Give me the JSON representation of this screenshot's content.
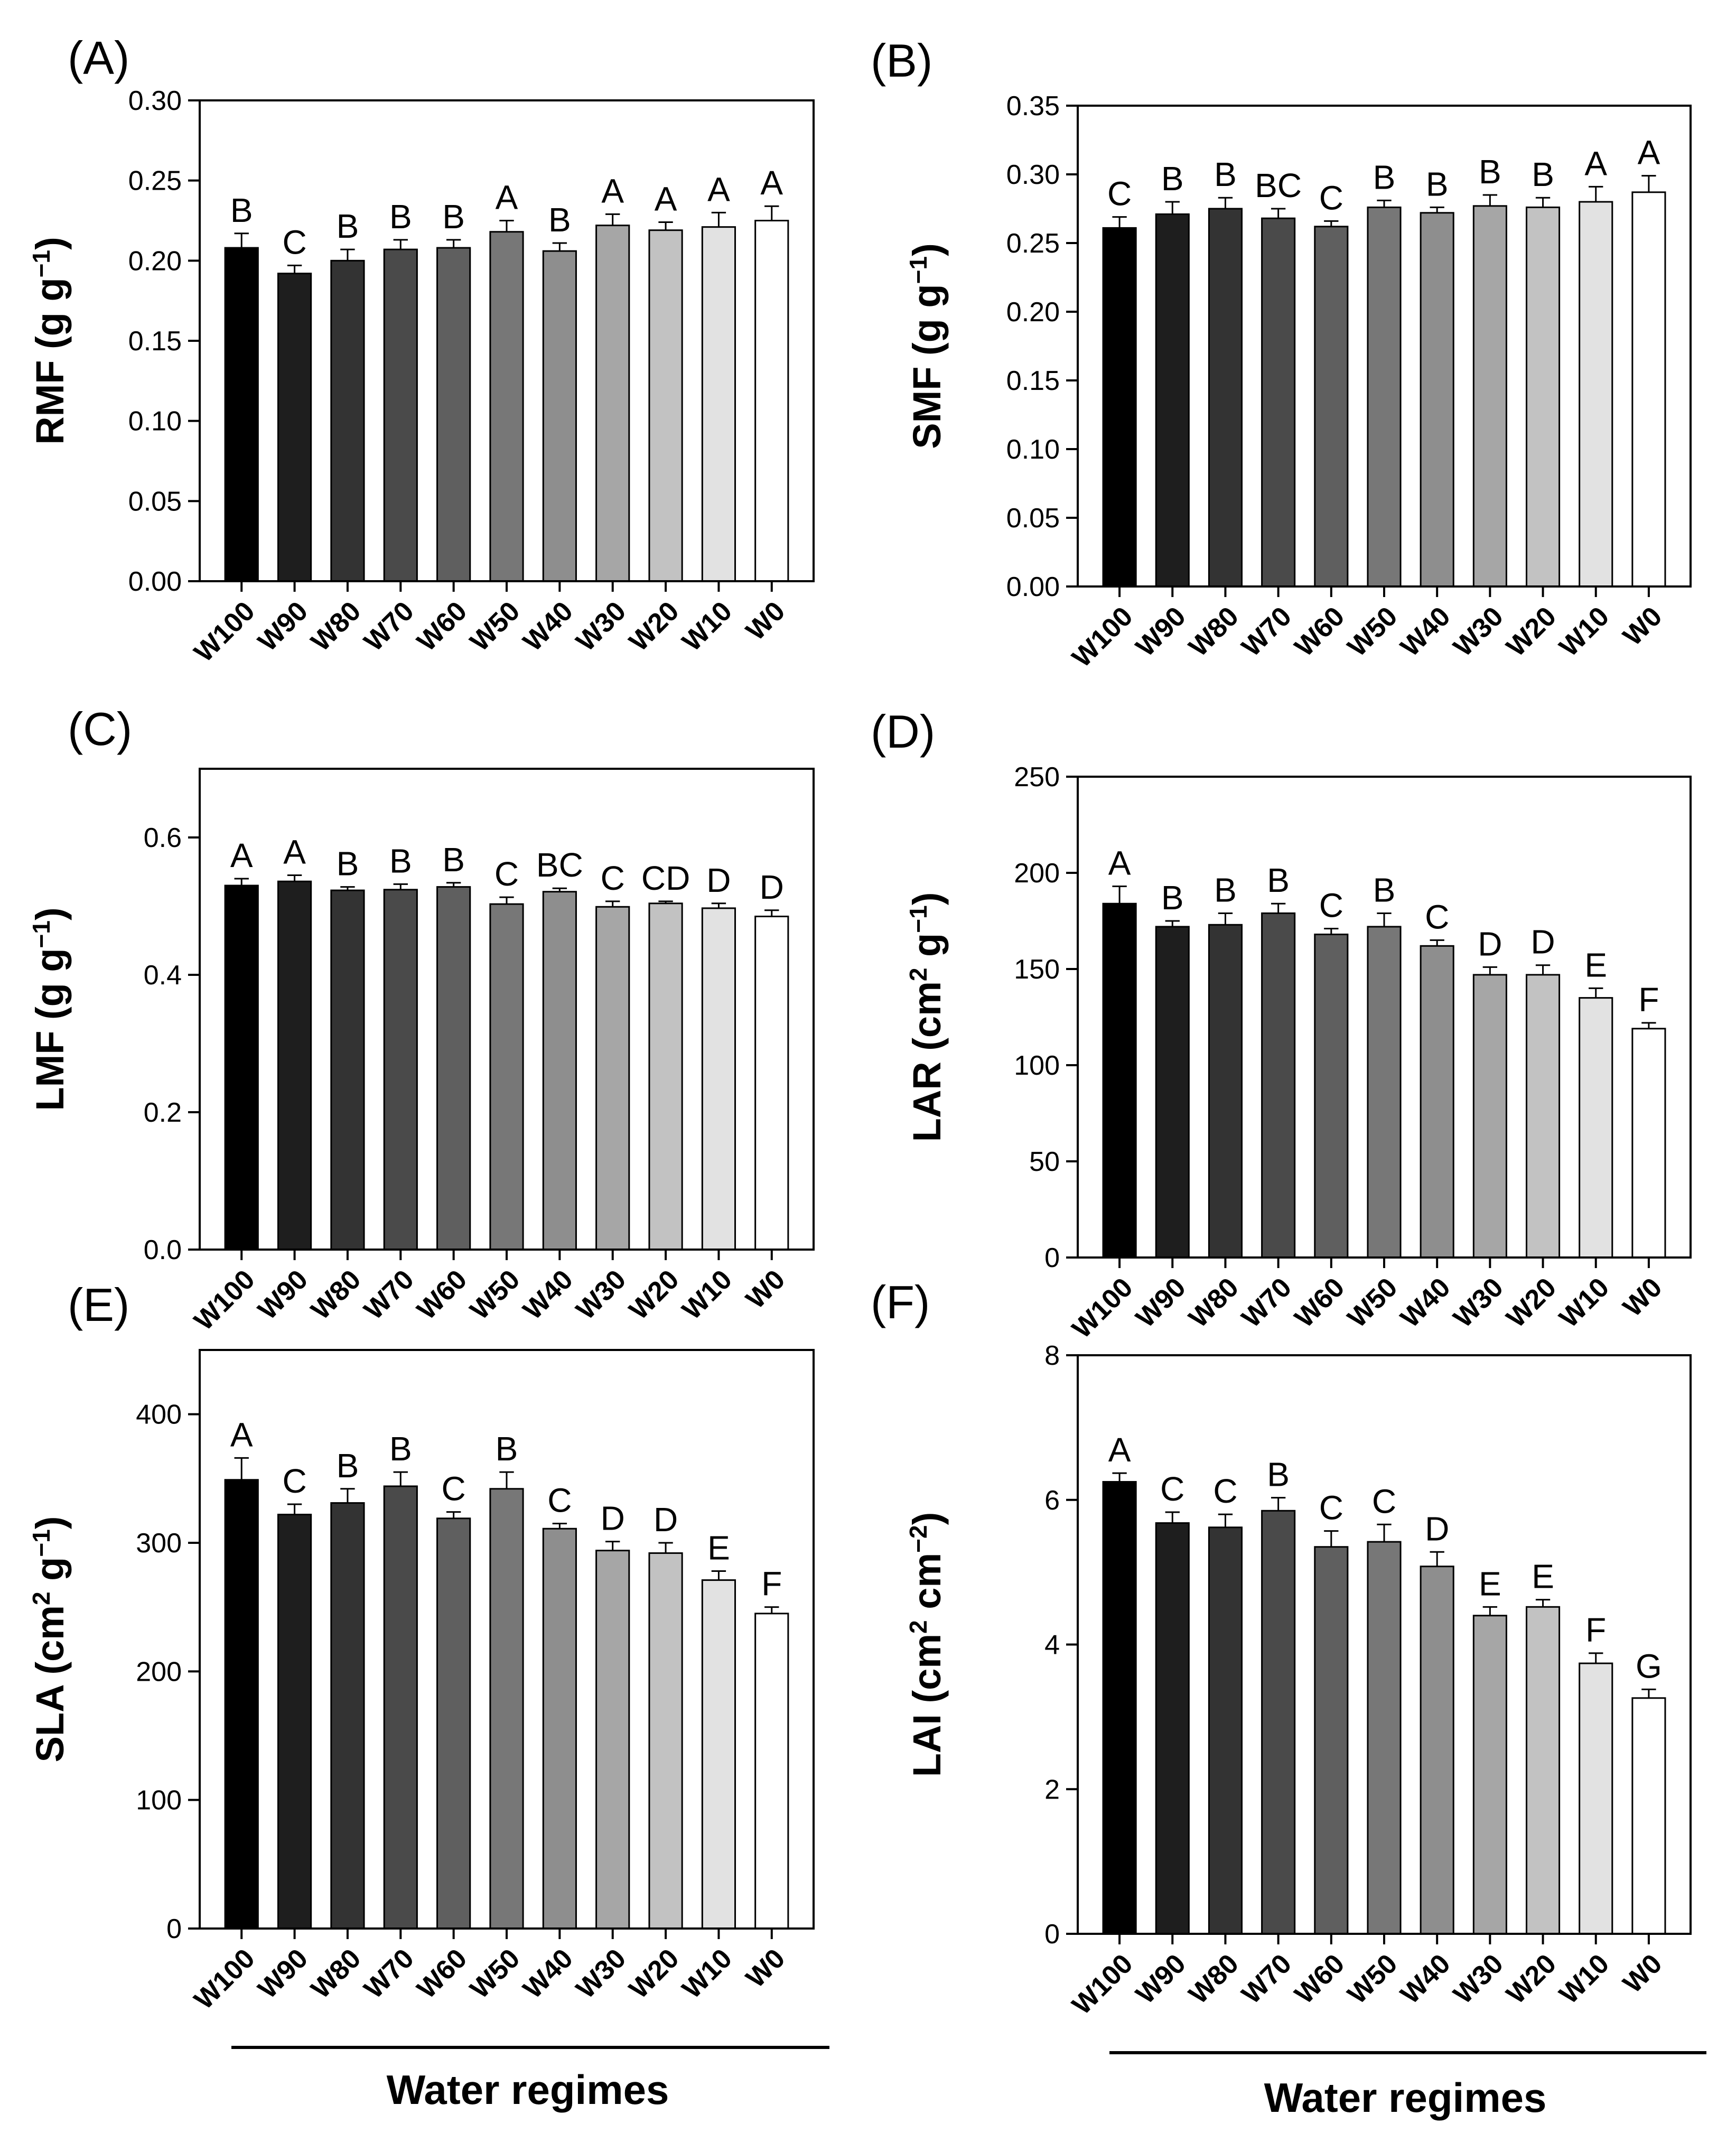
{
  "categories": [
    "W100",
    "W90",
    "W80",
    "W70",
    "W60",
    "W50",
    "W40",
    "W30",
    "W20",
    "W10",
    "W0"
  ],
  "bar_colors": [
    "#000000",
    "#1e1e1e",
    "#333333",
    "#4a4a4a",
    "#5f5f5f",
    "#777777",
    "#8e8e8e",
    "#a6a6a6",
    "#c2c2c2",
    "#e2e2e2",
    "#ffffff"
  ],
  "xlabel": "Water regimes",
  "chart_data": [
    {
      "type": "bar",
      "panel": "(A)",
      "ylabel": "RMF (g g⁻¹)",
      "ylabel_main": "RMF (g g",
      "ylabel_sup": "−1",
      "ylabel_tail": ")",
      "ylim": [
        0,
        0.3
      ],
      "yticks": [
        "0.00",
        "0.05",
        "0.10",
        "0.15",
        "0.20",
        "0.25",
        "0.30"
      ],
      "values": [
        0.208,
        0.192,
        0.2,
        0.207,
        0.208,
        0.218,
        0.206,
        0.222,
        0.219,
        0.221,
        0.225
      ],
      "errors": [
        0.009,
        0.005,
        0.007,
        0.006,
        0.005,
        0.007,
        0.005,
        0.007,
        0.005,
        0.009,
        0.009
      ],
      "letters": [
        "B",
        "C",
        "B",
        "B",
        "B",
        "A",
        "B",
        "A",
        "A",
        "A",
        "A"
      ]
    },
    {
      "type": "bar",
      "panel": "(B)",
      "ylabel": "SMF (g g⁻¹)",
      "ylabel_main": "SMF (g g",
      "ylabel_sup": "−1",
      "ylabel_tail": ")",
      "ylim": [
        0,
        0.35
      ],
      "yticks": [
        "0.00",
        "0.05",
        "0.10",
        "0.15",
        "0.20",
        "0.25",
        "0.30",
        "0.35"
      ],
      "values": [
        0.261,
        0.271,
        0.275,
        0.268,
        0.262,
        0.276,
        0.272,
        0.277,
        0.276,
        0.28,
        0.287
      ],
      "errors": [
        0.008,
        0.009,
        0.008,
        0.007,
        0.004,
        0.005,
        0.004,
        0.008,
        0.007,
        0.011,
        0.012
      ],
      "letters": [
        "C",
        "B",
        "B",
        "BC",
        "C",
        "B",
        "B",
        "B",
        "B",
        "A",
        "A"
      ]
    },
    {
      "type": "bar",
      "panel": "(C)",
      "ylabel": "LMF (g g⁻¹)",
      "ylabel_main": "LMF (g g",
      "ylabel_sup": "−1",
      "ylabel_tail": ")",
      "ylim": [
        0,
        0.7
      ],
      "yticks": [
        "0.0",
        "0.2",
        "0.4",
        "0.6"
      ],
      "values": [
        0.53,
        0.536,
        0.523,
        0.524,
        0.528,
        0.503,
        0.521,
        0.499,
        0.504,
        0.497,
        0.485
      ],
      "errors": [
        0.01,
        0.009,
        0.005,
        0.008,
        0.006,
        0.01,
        0.005,
        0.008,
        0.003,
        0.007,
        0.009
      ],
      "letters": [
        "A",
        "A",
        "B",
        "B",
        "B",
        "C",
        "BC",
        "C",
        "CD",
        "D",
        "D"
      ]
    },
    {
      "type": "bar",
      "panel": "(D)",
      "ylabel": "LAR (cm² g⁻¹)",
      "ylabel_main": "LAR (cm",
      "ylabel_sup2": "2",
      "ylabel_mid": " g",
      "ylabel_sup": "−1",
      "ylabel_tail": ")",
      "ylim": [
        0,
        250
      ],
      "yticks": [
        "0",
        "50",
        "100",
        "150",
        "200",
        "250"
      ],
      "values": [
        184,
        172,
        173,
        179,
        168,
        172,
        162,
        147,
        147,
        135,
        119
      ],
      "errors": [
        9,
        3,
        6,
        5,
        3,
        7,
        3,
        4,
        5,
        5,
        3
      ],
      "letters": [
        "A",
        "B",
        "B",
        "B",
        "C",
        "B",
        "C",
        "D",
        "D",
        "E",
        "F"
      ]
    },
    {
      "type": "bar",
      "panel": "(E)",
      "ylabel": "SLA (cm² g⁻¹)",
      "ylabel_main": "SLA (cm",
      "ylabel_sup2": "2",
      "ylabel_mid": " g",
      "ylabel_sup": "−1",
      "ylabel_tail": ")",
      "ylim": [
        0,
        450
      ],
      "yticks": [
        "0",
        "100",
        "200",
        "300",
        "400"
      ],
      "values": [
        349,
        322,
        331,
        344,
        319,
        342,
        311,
        294,
        292,
        271,
        245
      ],
      "errors": [
        17,
        8,
        11,
        11,
        5,
        13,
        4,
        7,
        8,
        7,
        5
      ],
      "letters": [
        "A",
        "C",
        "B",
        "B",
        "C",
        "B",
        "C",
        "D",
        "D",
        "E",
        "F"
      ]
    },
    {
      "type": "bar",
      "panel": "(F)",
      "ylabel": "LAI (cm² cm⁻²)",
      "ylabel_main": "LAI (cm",
      "ylabel_sup2": "2",
      "ylabel_mid": " cm",
      "ylabel_sup": "−2",
      "ylabel_tail": ")",
      "ylim": [
        0,
        8
      ],
      "yticks": [
        "0",
        "2",
        "4",
        "6",
        "8"
      ],
      "values": [
        6.25,
        5.68,
        5.62,
        5.85,
        5.35,
        5.42,
        5.08,
        4.4,
        4.52,
        3.74,
        3.26
      ],
      "errors": [
        0.12,
        0.15,
        0.18,
        0.18,
        0.22,
        0.24,
        0.2,
        0.12,
        0.1,
        0.14,
        0.12
      ],
      "letters": [
        "A",
        "C",
        "C",
        "B",
        "C",
        "C",
        "D",
        "E",
        "E",
        "F",
        "G"
      ]
    }
  ]
}
